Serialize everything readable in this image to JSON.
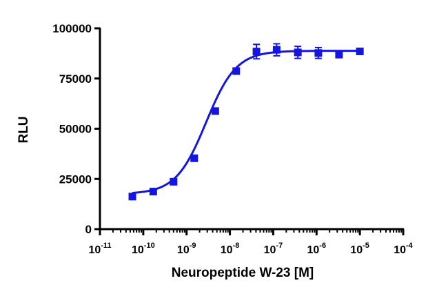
{
  "chart_data": {
    "type": "scatter",
    "title": "",
    "xlabel": "Neuropeptide W-23 [M]",
    "ylabel": "RLU",
    "x_scale": "log",
    "xlim": [
      1e-11,
      0.0001
    ],
    "ylim": [
      0,
      100000
    ],
    "y_ticks": [
      0,
      25000,
      50000,
      75000,
      100000
    ],
    "y_tick_labels": [
      "0",
      "25000",
      "50000",
      "75000",
      "100000"
    ],
    "x_ticks": [
      1e-11,
      1e-10,
      1e-09,
      1e-08,
      1e-07,
      1e-06,
      1e-05,
      0.0001
    ],
    "x_tick_labels": [
      {
        "base": "10",
        "exp": "-11"
      },
      {
        "base": "10",
        "exp": "-10"
      },
      {
        "base": "10",
        "exp": "-9"
      },
      {
        "base": "10",
        "exp": "-8"
      },
      {
        "base": "10",
        "exp": "-7"
      },
      {
        "base": "10",
        "exp": "-6"
      },
      {
        "base": "10",
        "exp": "-5"
      },
      {
        "base": "10",
        "exp": "-4"
      }
    ],
    "series": [
      {
        "x": [
          5.6e-11,
          1.7e-10,
          5e-10,
          1.5e-09,
          4.6e-09,
          1.4e-08,
          4.1e-08,
          1.2e-07,
          3.7e-07,
          1.1e-06,
          3.3e-06,
          1e-05
        ],
        "y": [
          16200,
          18700,
          23600,
          35300,
          58800,
          78700,
          88400,
          89300,
          88000,
          87700,
          86900,
          88500
        ],
        "err": [
          600,
          700,
          700,
          800,
          900,
          900,
          3600,
          3000,
          3000,
          2700,
          1500,
          800
        ]
      }
    ],
    "fit": {
      "type": "sigmoidal dose-response",
      "bottom": 17500,
      "top": 88800,
      "log_ec50": -8.55,
      "hill": 1.25
    },
    "colors": {
      "series": "#1515e0",
      "axis": "#000000"
    },
    "grid": false,
    "legend": "none"
  }
}
